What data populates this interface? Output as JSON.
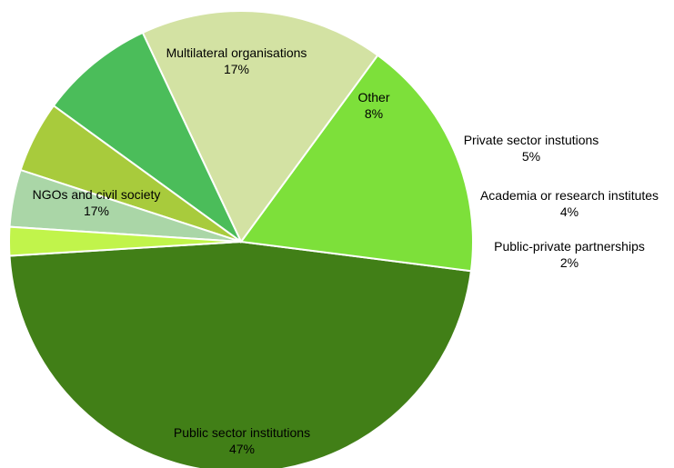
{
  "chart_data": {
    "type": "pie",
    "title": "",
    "slices": [
      {
        "label": "Public sector institutions",
        "value": 47,
        "value_label": "47%",
        "color": "#417f17"
      },
      {
        "label": "NGOs and civil society",
        "value": 17,
        "value_label": "17%",
        "color": "#7de03a"
      },
      {
        "label": "Multilateral organisations",
        "value": 17,
        "value_label": "17%",
        "color": "#d3e2a3"
      },
      {
        "label": "Other",
        "value": 8,
        "value_label": "8%",
        "color": "#4bbd5a"
      },
      {
        "label": "Private sector instutions",
        "value": 5,
        "value_label": "5%",
        "color": "#a8cb3c"
      },
      {
        "label": "Academia or research institutes",
        "value": 4,
        "value_label": "4%",
        "color": "#aad6a7"
      },
      {
        "label": "Public-private partnerships",
        "value": 2,
        "value_label": "2%",
        "color": "#c1f44b"
      }
    ],
    "legend": "none"
  }
}
